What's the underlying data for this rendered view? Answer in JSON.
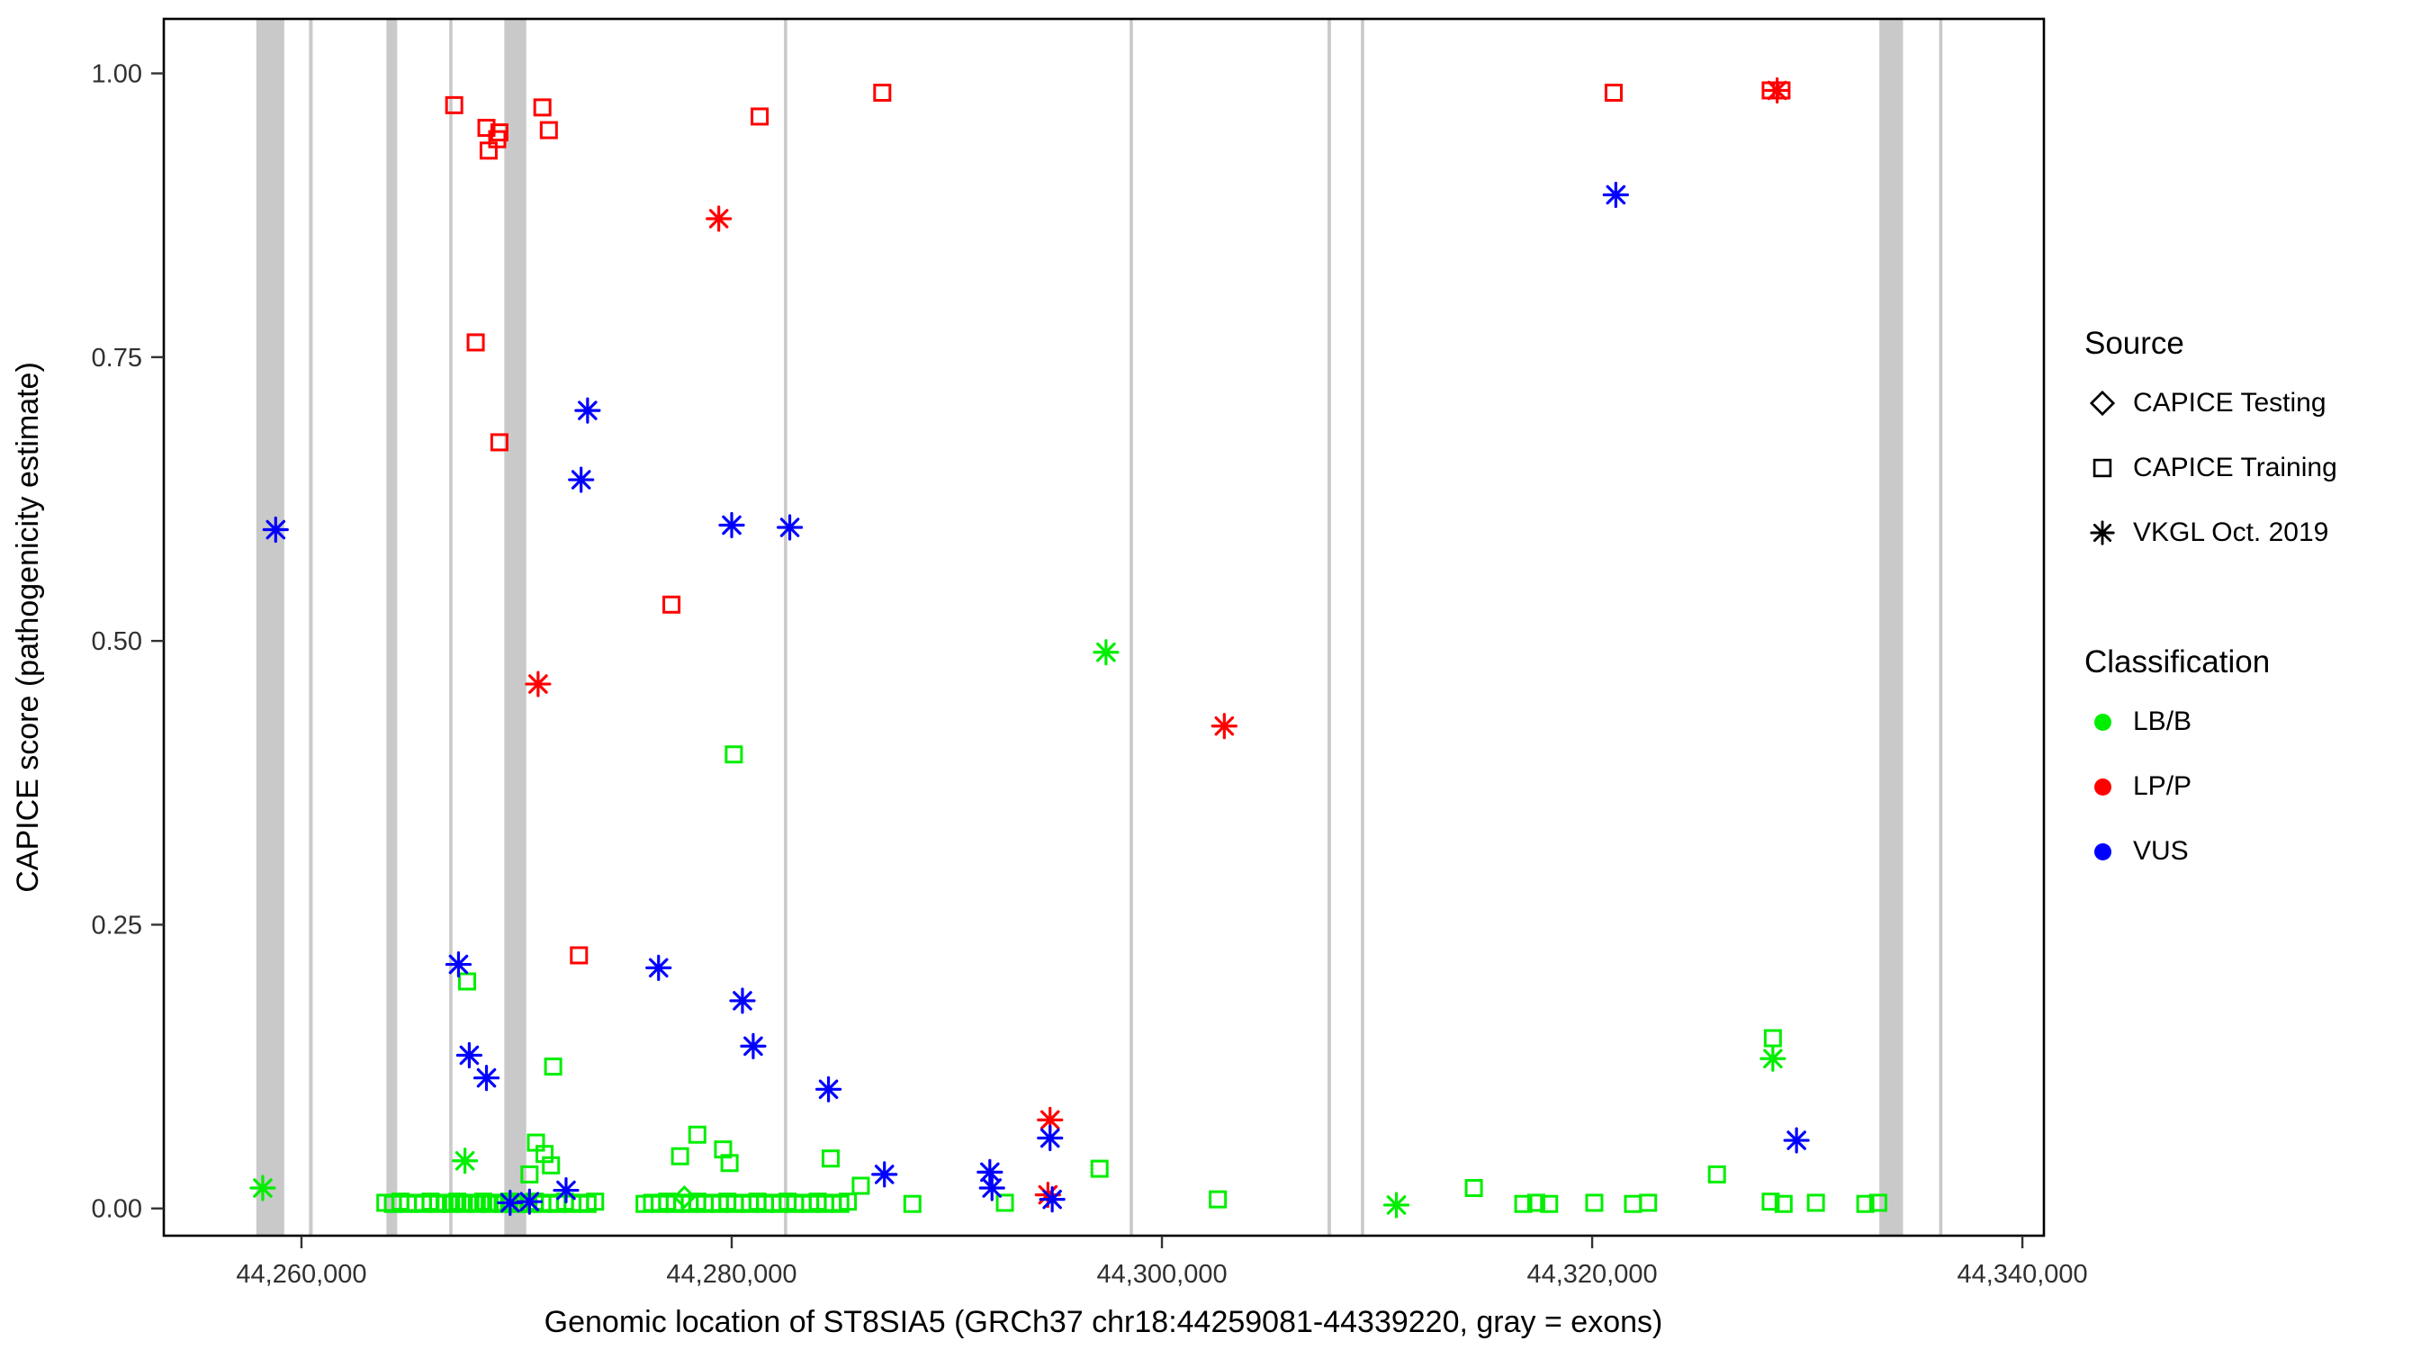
{
  "legend": {
    "source": {
      "title": "Source",
      "items": [
        {
          "label": "CAPICE Testing",
          "marker": "diamond"
        },
        {
          "label": "CAPICE Training",
          "marker": "square"
        },
        {
          "label": "VKGL Oct. 2019",
          "marker": "asterisk"
        }
      ]
    },
    "classification": {
      "title": "Classification",
      "items": [
        {
          "label": "LB/B",
          "color": "#00EE00"
        },
        {
          "label": "LP/P",
          "color": "#FF0000"
        },
        {
          "label": "VUS",
          "color": "#0000FF"
        }
      ]
    }
  },
  "chart_data": {
    "type": "scatter",
    "title": "",
    "xlabel": "Genomic location of ST8SIA5 (GRCh37 chr18:44259081-44339220, gray = exons)",
    "ylabel": "CAPICE score (pathogenicity estimate)",
    "xlim": [
      44259081,
      44339220
    ],
    "ylim": [
      0,
      1
    ],
    "plot_xlim": [
      44253600,
      44341000
    ],
    "plot_ylim": [
      -0.024,
      1.048
    ],
    "x_ticks": [
      {
        "v": 44260000,
        "label": "44,260,000"
      },
      {
        "v": 44280000,
        "label": "44,280,000"
      },
      {
        "v": 44300000,
        "label": "44,300,000"
      },
      {
        "v": 44320000,
        "label": "44,320,000"
      },
      {
        "v": 44340000,
        "label": "44,340,000"
      }
    ],
    "y_ticks": [
      {
        "v": 0.0,
        "label": "0.00"
      },
      {
        "v": 0.25,
        "label": "0.25"
      },
      {
        "v": 0.5,
        "label": "0.50"
      },
      {
        "v": 0.75,
        "label": "0.75"
      },
      {
        "v": 1.0,
        "label": "1.00"
      }
    ],
    "exon_color": "#C9C9C9",
    "exons": [
      [
        44257900,
        44259200
      ],
      [
        44260350,
        44260520
      ],
      [
        44263950,
        44264450
      ],
      [
        44266870,
        44267020
      ],
      [
        44269430,
        44270450
      ],
      [
        44282430,
        44282580
      ],
      [
        44298500,
        44298650
      ],
      [
        44307700,
        44307860
      ],
      [
        44309250,
        44309400
      ],
      [
        44333350,
        44334450
      ],
      [
        44336130,
        44336280
      ]
    ],
    "series": [
      {
        "classification": "LB/B",
        "source": "CAPICE Testing",
        "marker": "diamond",
        "color": "#00EE00",
        "points": [
          [
            44277800,
            0.01
          ]
        ]
      },
      {
        "classification": "LB/B",
        "source": "CAPICE Training",
        "marker": "square",
        "color": "#00EE00",
        "points": [
          [
            44267700,
            0.2
          ],
          [
            44271700,
            0.125
          ],
          [
            44280100,
            0.4
          ],
          [
            44328400,
            0.15
          ],
          [
            44270900,
            0.058
          ],
          [
            44271300,
            0.048
          ],
          [
            44271600,
            0.038
          ],
          [
            44270600,
            0.03
          ],
          [
            44278400,
            0.065
          ],
          [
            44279600,
            0.052
          ],
          [
            44279900,
            0.04
          ],
          [
            44277600,
            0.046
          ],
          [
            44284600,
            0.044
          ],
          [
            44297100,
            0.035
          ],
          [
            44325800,
            0.03
          ],
          [
            44314500,
            0.018
          ],
          [
            44286000,
            0.02
          ],
          [
            44302600,
            0.008
          ],
          [
            44263900,
            0.005
          ],
          [
            44264250,
            0.004
          ],
          [
            44264600,
            0.006
          ],
          [
            44264950,
            0.004
          ],
          [
            44265300,
            0.005
          ],
          [
            44265650,
            0.004
          ],
          [
            44266000,
            0.006
          ],
          [
            44266350,
            0.004
          ],
          [
            44266650,
            0.005
          ],
          [
            44266950,
            0.004
          ],
          [
            44267250,
            0.006
          ],
          [
            44267550,
            0.004
          ],
          [
            44267850,
            0.005
          ],
          [
            44268150,
            0.004
          ],
          [
            44268450,
            0.006
          ],
          [
            44268750,
            0.004
          ],
          [
            44269050,
            0.005
          ],
          [
            44269350,
            0.004
          ],
          [
            44269650,
            0.006
          ],
          [
            44269950,
            0.004
          ],
          [
            44270250,
            0.005
          ],
          [
            44270550,
            0.004
          ],
          [
            44270850,
            0.006
          ],
          [
            44271200,
            0.004
          ],
          [
            44271550,
            0.005
          ],
          [
            44271900,
            0.004
          ],
          [
            44272250,
            0.006
          ],
          [
            44272600,
            0.004
          ],
          [
            44272950,
            0.005
          ],
          [
            44273300,
            0.004
          ],
          [
            44273650,
            0.006
          ],
          [
            44275950,
            0.004
          ],
          [
            44276300,
            0.005
          ],
          [
            44276650,
            0.004
          ],
          [
            44277000,
            0.006
          ],
          [
            44277350,
            0.004
          ],
          [
            44277700,
            0.005
          ],
          [
            44278050,
            0.004
          ],
          [
            44278400,
            0.006
          ],
          [
            44278750,
            0.004
          ],
          [
            44279100,
            0.005
          ],
          [
            44279450,
            0.004
          ],
          [
            44279800,
            0.006
          ],
          [
            44280150,
            0.004
          ],
          [
            44280500,
            0.005
          ],
          [
            44280850,
            0.004
          ],
          [
            44281200,
            0.006
          ],
          [
            44281550,
            0.004
          ],
          [
            44281900,
            0.005
          ],
          [
            44282250,
            0.004
          ],
          [
            44282600,
            0.006
          ],
          [
            44282950,
            0.004
          ],
          [
            44283300,
            0.005
          ],
          [
            44283650,
            0.004
          ],
          [
            44284000,
            0.006
          ],
          [
            44284350,
            0.004
          ],
          [
            44284700,
            0.005
          ],
          [
            44285050,
            0.004
          ],
          [
            44285400,
            0.006
          ],
          [
            44288400,
            0.004
          ],
          [
            44292700,
            0.005
          ],
          [
            44316800,
            0.004
          ],
          [
            44317400,
            0.005
          ],
          [
            44318000,
            0.004
          ],
          [
            44320100,
            0.005
          ],
          [
            44321900,
            0.004
          ],
          [
            44322600,
            0.005
          ],
          [
            44328300,
            0.006
          ],
          [
            44328900,
            0.004
          ],
          [
            44330400,
            0.005
          ],
          [
            44332700,
            0.004
          ],
          [
            44333300,
            0.005
          ]
        ]
      },
      {
        "classification": "LB/B",
        "source": "VKGL Oct. 2019",
        "marker": "asterisk",
        "color": "#00EE00",
        "points": [
          [
            44258200,
            0.018
          ],
          [
            44267600,
            0.042
          ],
          [
            44297400,
            0.49
          ],
          [
            44310900,
            0.003
          ],
          [
            44328400,
            0.132
          ]
        ]
      },
      {
        "classification": "LP/P",
        "source": "CAPICE Training",
        "marker": "square",
        "color": "#FF0000",
        "points": [
          [
            44267100,
            0.972
          ],
          [
            44268600,
            0.952
          ],
          [
            44269200,
            0.948
          ],
          [
            44268700,
            0.932
          ],
          [
            44269100,
            0.942
          ],
          [
            44271200,
            0.97
          ],
          [
            44271500,
            0.95
          ],
          [
            44268100,
            0.763
          ],
          [
            44269200,
            0.675
          ],
          [
            44281300,
            0.962
          ],
          [
            44287000,
            0.983
          ],
          [
            44277200,
            0.532
          ],
          [
            44272900,
            0.223
          ],
          [
            44321000,
            0.983
          ],
          [
            44328300,
            0.985
          ],
          [
            44328800,
            0.985
          ]
        ]
      },
      {
        "classification": "LP/P",
        "source": "VKGL Oct. 2019",
        "marker": "asterisk",
        "color": "#FF0000",
        "points": [
          [
            44279400,
            0.872
          ],
          [
            44271000,
            0.462
          ],
          [
            44302900,
            0.425
          ],
          [
            44294800,
            0.078
          ],
          [
            44294700,
            0.012
          ],
          [
            44328600,
            0.985
          ]
        ]
      },
      {
        "classification": "VUS",
        "source": "VKGL Oct. 2019",
        "marker": "asterisk",
        "color": "#0000FF",
        "points": [
          [
            44258800,
            0.598
          ],
          [
            44273300,
            0.703
          ],
          [
            44273000,
            0.642
          ],
          [
            44280000,
            0.602
          ],
          [
            44282700,
            0.6
          ],
          [
            44321100,
            0.893
          ],
          [
            44267300,
            0.215
          ],
          [
            44276600,
            0.212
          ],
          [
            44280500,
            0.183
          ],
          [
            44281000,
            0.143
          ],
          [
            44284500,
            0.105
          ],
          [
            44267800,
            0.135
          ],
          [
            44268600,
            0.115
          ],
          [
            44287100,
            0.03
          ],
          [
            44292000,
            0.032
          ],
          [
            44292100,
            0.018
          ],
          [
            44294800,
            0.062
          ],
          [
            44294900,
            0.008
          ],
          [
            44329500,
            0.06
          ],
          [
            44269700,
            0.005
          ],
          [
            44270600,
            0.006
          ],
          [
            44272300,
            0.016
          ]
        ]
      }
    ]
  }
}
